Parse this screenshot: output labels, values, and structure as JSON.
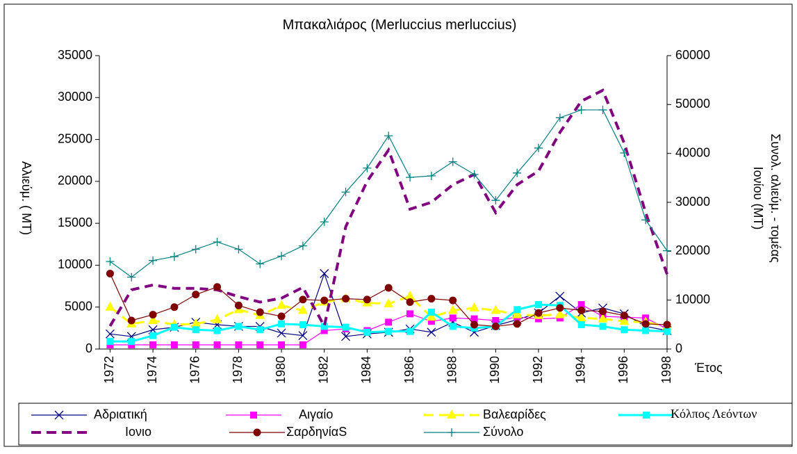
{
  "chart_data": {
    "type": "line",
    "title": "Μπακαλιάρος (Merluccius merluccius)",
    "ylabel": "Αλιεύμ. ( MT)",
    "y2label": [
      "Συνολ. αλιεύμ. - τομέας",
      "Ιονίου (MT)"
    ],
    "xlabel": "Έτος",
    "x": [
      1972,
      1973,
      1974,
      1975,
      1976,
      1977,
      1978,
      1979,
      1980,
      1981,
      1982,
      1983,
      1984,
      1985,
      1986,
      1987,
      1988,
      1989,
      1990,
      1991,
      1992,
      1993,
      1994,
      1995,
      1996,
      1997,
      1998
    ],
    "xlim": [
      1971.5,
      1998
    ],
    "xticks": [
      1972,
      1974,
      1976,
      1978,
      1980,
      1982,
      1984,
      1986,
      1988,
      1990,
      1992,
      1994,
      1996,
      1998
    ],
    "ylim": [
      0,
      35000
    ],
    "yticks": [
      0,
      5000,
      10000,
      15000,
      20000,
      25000,
      30000,
      35000
    ],
    "y2lim": [
      0,
      60000
    ],
    "y2ticks": [
      0,
      10000,
      20000,
      30000,
      40000,
      50000,
      60000
    ],
    "series": [
      {
        "name": "Αδριατική",
        "color": "#000080",
        "marker": "x",
        "width": 1.2,
        "values": [
          1800,
          1500,
          2300,
          2600,
          3200,
          2900,
          2700,
          2700,
          1900,
          1600,
          9000,
          1500,
          1800,
          2000,
          2400,
          2000,
          3200,
          2000,
          2800,
          3500,
          4300,
          6300,
          4300,
          4900,
          4200,
          2700,
          2200
        ]
      },
      {
        "name": "Αιγαίο",
        "color": "#ff00ff",
        "marker": "square",
        "width": 1.2,
        "values": [
          500,
          500,
          500,
          500,
          500,
          500,
          500,
          500,
          500,
          500,
          2200,
          2400,
          2200,
          3200,
          4200,
          3300,
          3700,
          3600,
          3400,
          3800,
          3600,
          3700,
          5300,
          3900,
          3800,
          3700,
          2400
        ]
      },
      {
        "name": "Βαλεαρίδες",
        "color": "#ffff00",
        "marker": "triangle",
        "width": 3,
        "dash": true,
        "values": [
          5000,
          3000,
          3400,
          2900,
          3000,
          3500,
          4700,
          4000,
          5200,
          4600,
          5600,
          6000,
          5500,
          5400,
          6300,
          3800,
          4600,
          4900,
          4600,
          4100,
          4000,
          4100,
          3700,
          3600,
          3300,
          3200,
          2700
        ]
      },
      {
        "name": "Κόλπος Λεόντων",
        "color": "#00ffff",
        "marker": "square",
        "width": 3,
        "values": [
          900,
          900,
          1600,
          2600,
          2300,
          2200,
          2700,
          2300,
          3000,
          2900,
          2700,
          2600,
          2000,
          2100,
          2100,
          4400,
          2700,
          2500,
          2700,
          4700,
          5300,
          5200,
          2900,
          2700,
          2300,
          2200,
          2100
        ]
      },
      {
        "name": "Ιονιο",
        "color": "#800080",
        "width": 4,
        "dash": true,
        "axis": "y2",
        "values": [
          4700,
          12100,
          13100,
          12400,
          12400,
          12100,
          10700,
          9600,
          10400,
          12600,
          4700,
          25000,
          34300,
          40700,
          28600,
          30000,
          33600,
          35700,
          27900,
          33600,
          36400,
          44300,
          50700,
          52900,
          42100,
          27900,
          15300
        ]
      },
      {
        "name": "ΣαρδηνίαS",
        "color": "#800000",
        "marker": "circle",
        "width": 1.2,
        "values": [
          9000,
          3400,
          4100,
          5000,
          6500,
          7400,
          5200,
          4400,
          3900,
          5900,
          5800,
          6000,
          5900,
          7300,
          5600,
          6000,
          5800,
          2900,
          2700,
          3000,
          4300,
          4900,
          4600,
          4500,
          4000,
          3000,
          2900
        ]
      },
      {
        "name": "Σύνολο",
        "color": "#008080",
        "marker": "plus",
        "width": 1.2,
        "axis": "y2",
        "values": [
          17900,
          14700,
          18100,
          18900,
          20400,
          21900,
          20400,
          17400,
          19000,
          21100,
          26000,
          32100,
          37000,
          43600,
          35100,
          35400,
          38300,
          35700,
          30400,
          36000,
          41100,
          47300,
          48900,
          48900,
          40100,
          26400,
          20100
        ]
      }
    ]
  }
}
